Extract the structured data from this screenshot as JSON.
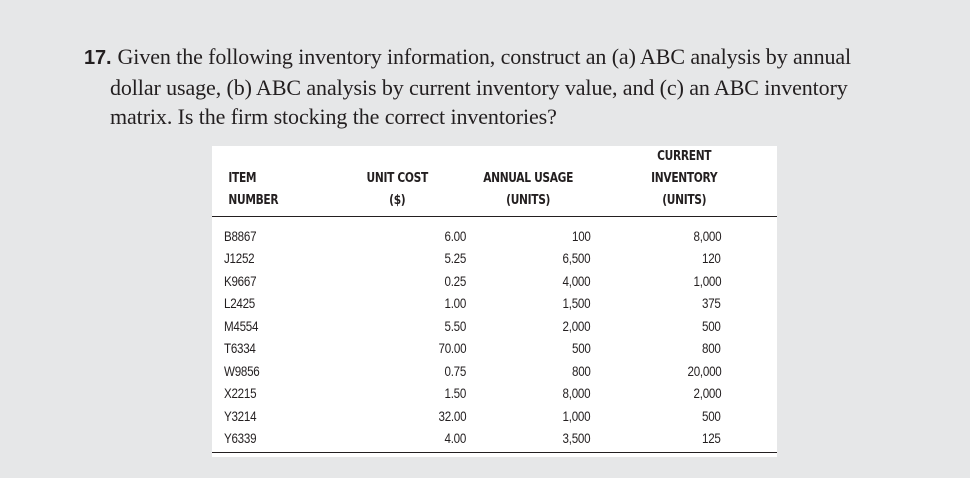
{
  "problem": {
    "number": "17.",
    "lines": [
      "Given the following inventory information, construct an (a) ABC analysis by annual",
      "dollar usage, (b) ABC analysis by current inventory value, and (c) an ABC inventory",
      "matrix. Is the firm stocking the correct inventories?"
    ]
  },
  "table": {
    "headers": {
      "item": "ITEM NUMBER",
      "unit_cost_1": "UNIT COST",
      "unit_cost_2": "($)",
      "annual_usage_1": "ANNUAL USAGE",
      "annual_usage_2": "(UNITS)",
      "current_inventory_1": "CURRENT",
      "current_inventory_2": "INVENTORY",
      "current_inventory_3": "(UNITS)"
    },
    "rows": [
      {
        "item": "B8867",
        "unit_cost": "6.00",
        "annual_usage": "100",
        "current_inventory": "8,000"
      },
      {
        "item": "J1252",
        "unit_cost": "5.25",
        "annual_usage": "6,500",
        "current_inventory": "120"
      },
      {
        "item": "K9667",
        "unit_cost": "0.25",
        "annual_usage": "4,000",
        "current_inventory": "1,000"
      },
      {
        "item": "L2425",
        "unit_cost": "1.00",
        "annual_usage": "1,500",
        "current_inventory": "375"
      },
      {
        "item": "M4554",
        "unit_cost": "5.50",
        "annual_usage": "2,000",
        "current_inventory": "500"
      },
      {
        "item": "T6334",
        "unit_cost": "70.00",
        "annual_usage": "500",
        "current_inventory": "800"
      },
      {
        "item": "W9856",
        "unit_cost": "0.75",
        "annual_usage": "800",
        "current_inventory": "20,000"
      },
      {
        "item": "X2215",
        "unit_cost": "1.50",
        "annual_usage": "8,000",
        "current_inventory": "2,000"
      },
      {
        "item": "Y3214",
        "unit_cost": "32.00",
        "annual_usage": "1,000",
        "current_inventory": "500"
      },
      {
        "item": "Y6339",
        "unit_cost": "4.00",
        "annual_usage": "3,500",
        "current_inventory": "125"
      }
    ]
  }
}
